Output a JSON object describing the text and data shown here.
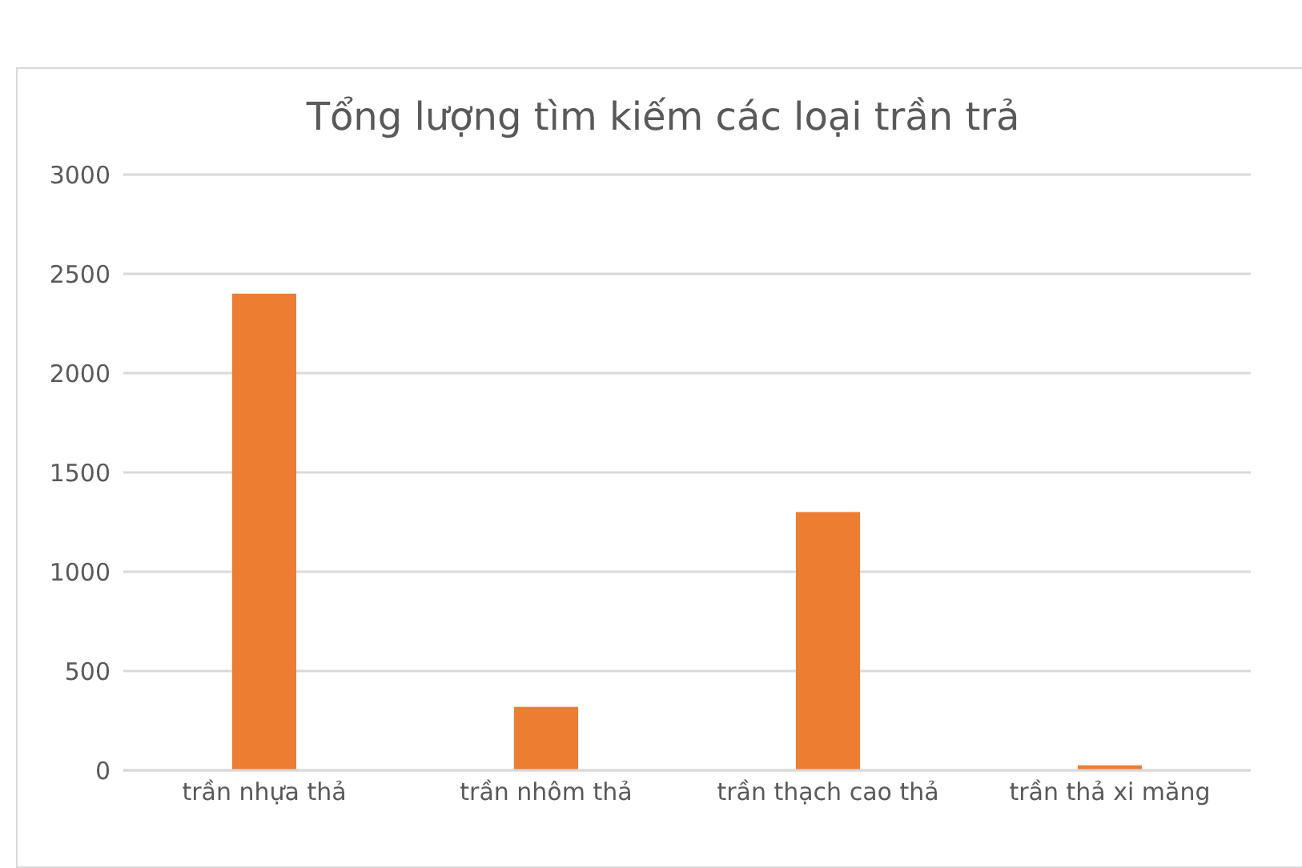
{
  "chart_data": {
    "type": "bar",
    "title": "Tổng lượng tìm kiếm các loại trần trả",
    "categories": [
      "trần nhựa thả",
      "trần nhôm thả",
      "trần thạch cao thả",
      "trần thả xi măng"
    ],
    "values": [
      2400,
      320,
      1300,
      25
    ],
    "color": "#ed7d31",
    "ylim": [
      0,
      3000
    ],
    "yticks": [
      0,
      500,
      1000,
      1500,
      2000,
      2500,
      3000
    ],
    "grid": "y"
  }
}
